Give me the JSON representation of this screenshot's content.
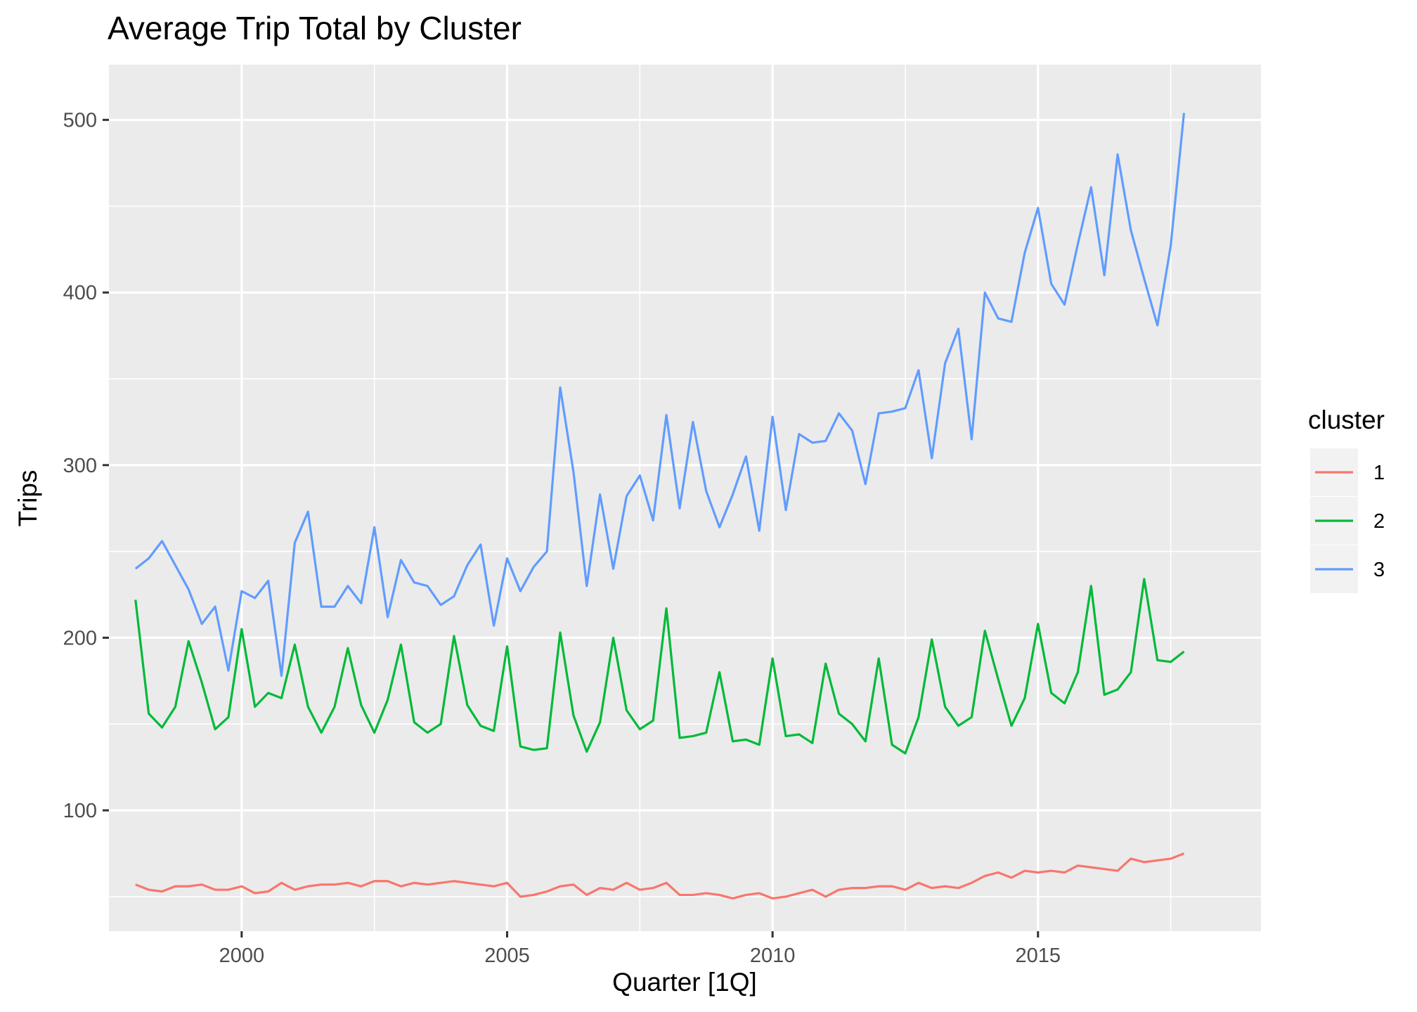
{
  "chart_data": {
    "type": "line",
    "title": "Average Trip Total by Cluster",
    "xlabel": "Quarter [1Q]",
    "ylabel": "Trips",
    "x_ticks": [
      "2000",
      "2005",
      "2010",
      "2015"
    ],
    "y_ticks": [
      "100",
      "200",
      "300",
      "400",
      "500"
    ],
    "xlim": [
      1997.5,
      2019.2
    ],
    "ylim": [
      30,
      532
    ],
    "grid": true,
    "background": "#EBEBEB",
    "legend": {
      "title": "cluster",
      "position": "right",
      "keys": [
        "1",
        "2",
        "3"
      ]
    },
    "x_start": "1998 Q1",
    "x_step_quarters": 1,
    "series": [
      {
        "name": "1",
        "color": "#F8766D",
        "values": [
          57,
          54,
          53,
          56,
          56,
          57,
          54,
          54,
          56,
          52,
          53,
          58,
          54,
          56,
          57,
          57,
          58,
          56,
          59,
          59,
          56,
          58,
          57,
          58,
          59,
          58,
          57,
          56,
          58,
          50,
          51,
          53,
          56,
          57,
          51,
          55,
          54,
          58,
          54,
          55,
          58,
          51,
          51,
          52,
          51,
          49,
          51,
          52,
          49,
          50,
          52,
          54,
          50,
          54,
          55,
          55,
          56,
          56,
          54,
          58,
          55,
          56,
          55,
          58,
          62,
          64,
          61,
          65,
          64,
          65,
          64,
          68,
          67,
          66,
          65,
          72,
          70,
          71,
          72,
          75
        ]
      },
      {
        "name": "2",
        "color": "#00BA38",
        "values": [
          222,
          156,
          148,
          160,
          198,
          174,
          147,
          154,
          205,
          160,
          168,
          165,
          196,
          160,
          145,
          160,
          194,
          161,
          145,
          164,
          196,
          151,
          145,
          150,
          201,
          161,
          149,
          146,
          195,
          137,
          135,
          136,
          203,
          155,
          134,
          151,
          200,
          158,
          147,
          152,
          217,
          142,
          143,
          145,
          180,
          140,
          141,
          138,
          188,
          143,
          144,
          139,
          185,
          156,
          150,
          140,
          188,
          138,
          133,
          154,
          199,
          160,
          149,
          154,
          204,
          176,
          149,
          165,
          208,
          168,
          162,
          180,
          230,
          167,
          170,
          180,
          234,
          187,
          186,
          192
        ]
      },
      {
        "name": "3",
        "color": "#619CFF",
        "values": [
          240,
          246,
          256,
          242,
          228,
          208,
          218,
          181,
          227,
          223,
          233,
          178,
          255,
          273,
          218,
          218,
          230,
          220,
          264,
          212,
          245,
          232,
          230,
          219,
          224,
          242,
          254,
          207,
          246,
          227,
          241,
          250,
          345,
          296,
          230,
          283,
          240,
          282,
          294,
          268,
          329,
          275,
          325,
          285,
          264,
          283,
          305,
          262,
          328,
          274,
          318,
          313,
          314,
          330,
          320,
          289,
          330,
          331,
          333,
          355,
          304,
          359,
          379,
          315,
          400,
          385,
          383,
          423,
          449,
          405,
          393,
          428,
          461,
          410,
          480,
          436,
          408,
          381,
          427,
          504
        ]
      }
    ]
  }
}
